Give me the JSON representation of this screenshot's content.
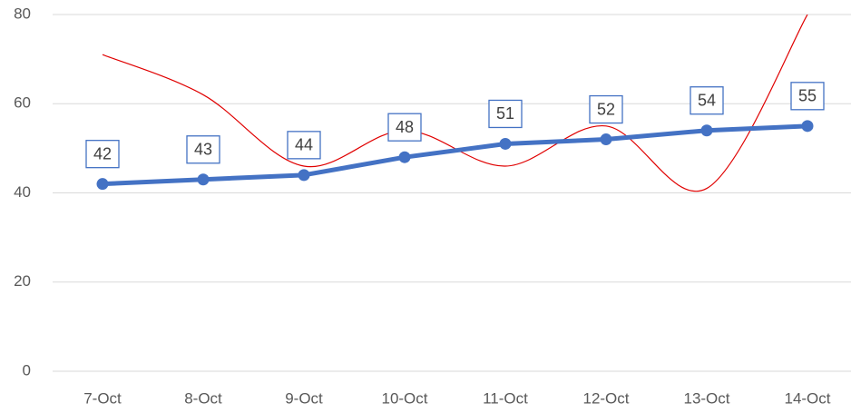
{
  "chart_data": {
    "type": "line",
    "categories": [
      "7-Oct",
      "8-Oct",
      "9-Oct",
      "10-Oct",
      "11-Oct",
      "12-Oct",
      "13-Oct",
      "14-Oct"
    ],
    "series": [
      {
        "color": "#4472c4",
        "values": [
          42,
          43,
          44,
          48,
          51,
          52,
          54,
          55
        ],
        "smooth": false,
        "data_labels": true
      },
      {
        "color": "#e00000",
        "values": [
          71,
          62,
          46,
          54,
          46,
          55,
          41,
          80
        ],
        "smooth": true,
        "data_labels": false
      }
    ],
    "ylim": [
      0,
      80
    ],
    "yticks": [
      0,
      20,
      40,
      60,
      80
    ],
    "grid": true
  }
}
